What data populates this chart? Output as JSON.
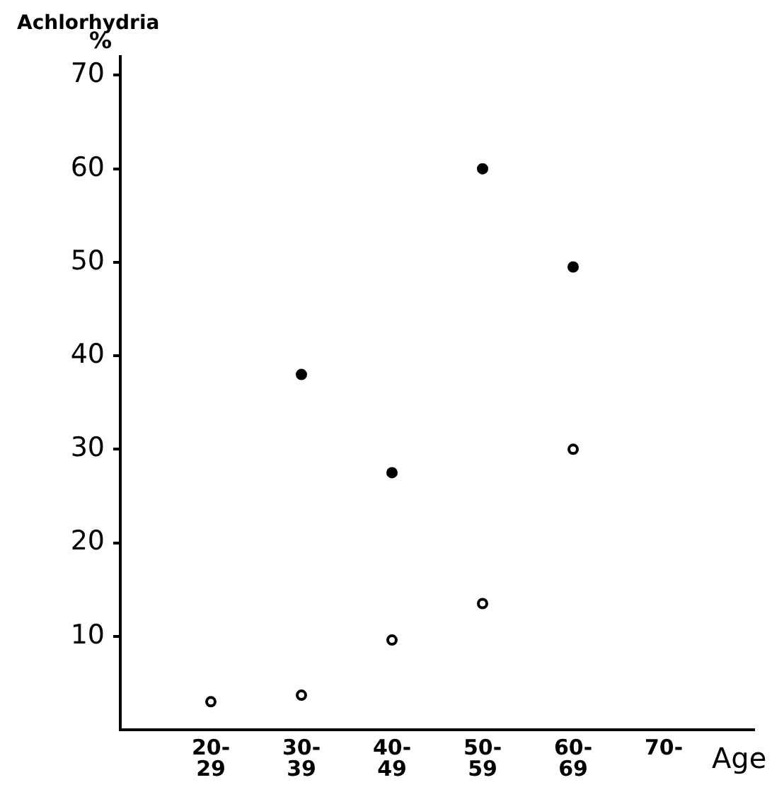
{
  "chart_data": {
    "type": "scatter",
    "ylabel": "Achlorhydria",
    "xlabel": "Age",
    "annotations": [
      "%"
    ],
    "categories": [
      null,
      "20-\n29",
      "30-\n39",
      "40-\n49",
      "50-\n59",
      "60-\n69",
      "70-",
      null
    ],
    "series": [
      {
        "color": "#000000",
        "values": [
          null,
          null,
          38,
          27.5,
          60,
          49.5,
          null,
          null
        ]
      },
      {
        "color": "#000000",
        "values": [
          null,
          3,
          3.7,
          9.6,
          13.5,
          30,
          null,
          null
        ]
      }
    ],
    "ylim": [
      0,
      72
    ],
    "yticks": [
      10,
      20,
      30,
      40,
      50,
      60,
      70
    ],
    "grid": false,
    "legend": false,
    "marker": "circle"
  }
}
